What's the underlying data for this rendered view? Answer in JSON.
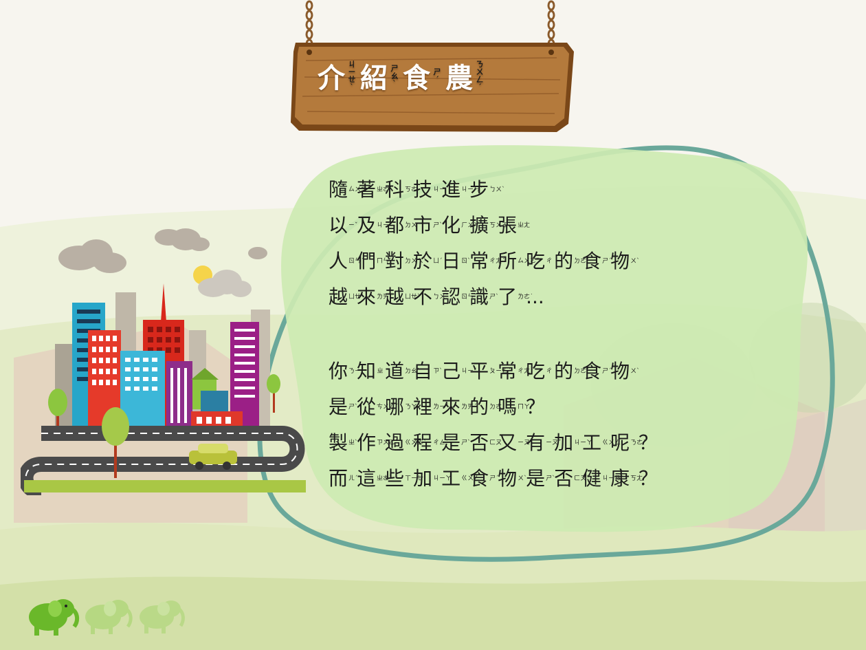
{
  "title": {
    "chars": [
      {
        "c": "介",
        "b": "ㄐㄧㄝˋ"
      },
      {
        "c": "紹",
        "b": "ㄕㄠˋ"
      },
      {
        "c": "食",
        "b": "ㄕˊ"
      },
      {
        "c": "農",
        "b": "ㄋㄨㄥˊ"
      }
    ]
  },
  "lines": [
    [
      {
        "c": "隨",
        "b": "ㄙㄨㄟˊ"
      },
      {
        "c": "著",
        "b": "ㄓㄜ˙"
      },
      {
        "c": "科",
        "b": "ㄎㄜ"
      },
      {
        "c": "技",
        "b": "ㄐㄧˋ"
      },
      {
        "c": "進",
        "b": "ㄐㄧㄣˋ"
      },
      {
        "c": "步",
        "b": "ㄅㄨˋ"
      }
    ],
    [
      {
        "c": "以",
        "b": "ㄧˇ"
      },
      {
        "c": "及",
        "b": "ㄐㄧˊ"
      },
      {
        "c": "都",
        "b": "ㄉㄨ"
      },
      {
        "c": "市",
        "b": "ㄕˋ"
      },
      {
        "c": "化",
        "b": "ㄏㄨㄚˋ"
      },
      {
        "c": "擴",
        "b": "ㄎㄨㄛˋ"
      },
      {
        "c": "張",
        "b": "ㄓㄤ"
      }
    ],
    [
      {
        "c": "人",
        "b": "ㄖㄣˊ"
      },
      {
        "c": "們",
        "b": "ㄇㄣ˙"
      },
      {
        "c": "對",
        "b": "ㄉㄨㄟˋ"
      },
      {
        "c": "於",
        "b": "ㄩˊ"
      },
      {
        "c": "日",
        "b": "ㄖˋ"
      },
      {
        "c": "常",
        "b": "ㄔㄤˊ"
      },
      {
        "c": "所",
        "b": "ㄙㄨㄛˇ"
      },
      {
        "c": "吃",
        "b": "ㄔ"
      },
      {
        "c": "的",
        "b": "ㄉㄜ˙"
      },
      {
        "c": "食",
        "b": "ㄕˊ"
      },
      {
        "c": "物",
        "b": "ㄨˋ"
      }
    ],
    [
      {
        "c": "越",
        "b": "ㄩㄝˋ"
      },
      {
        "c": "來",
        "b": "ㄌㄞˊ"
      },
      {
        "c": "越",
        "b": "ㄩㄝˋ"
      },
      {
        "c": "不",
        "b": "ㄅㄨˋ"
      },
      {
        "c": "認",
        "b": "ㄖㄣˋ"
      },
      {
        "c": "識",
        "b": "ㄕˋ"
      },
      {
        "c": "了",
        "b": "ㄌㄜ˙"
      },
      {
        "c": "...",
        "b": ""
      }
    ],
    [],
    [
      {
        "c": "你",
        "b": "ㄋㄧˇ"
      },
      {
        "c": "知",
        "b": "ㄓ"
      },
      {
        "c": "道",
        "b": "ㄉㄠˋ"
      },
      {
        "c": "自",
        "b": "ㄗˋ"
      },
      {
        "c": "己",
        "b": "ㄐㄧˇ"
      },
      {
        "c": "平",
        "b": "ㄆㄧㄥˊ"
      },
      {
        "c": "常",
        "b": "ㄔㄤˊ"
      },
      {
        "c": "吃",
        "b": "ㄔ"
      },
      {
        "c": "的",
        "b": "ㄉㄜ˙"
      },
      {
        "c": "食",
        "b": "ㄕˊ"
      },
      {
        "c": "物",
        "b": "ㄨˋ"
      }
    ],
    [
      {
        "c": "是",
        "b": "ㄕˋ"
      },
      {
        "c": "從",
        "b": "ㄘㄨㄥˊ"
      },
      {
        "c": "哪",
        "b": "ㄋㄚˇ"
      },
      {
        "c": "裡",
        "b": "ㄌㄧˇ"
      },
      {
        "c": "來",
        "b": "ㄌㄞˊ"
      },
      {
        "c": "的",
        "b": "ㄉㄜ˙"
      },
      {
        "c": "嗎",
        "b": "ㄇㄚ˙"
      },
      {
        "c": "？",
        "b": ""
      }
    ],
    [
      {
        "c": "製",
        "b": "ㄓˋ"
      },
      {
        "c": "作",
        "b": "ㄗㄨㄛˋ"
      },
      {
        "c": "過",
        "b": "ㄍㄨㄛˋ"
      },
      {
        "c": "程",
        "b": "ㄔㄥˊ"
      },
      {
        "c": "是",
        "b": "ㄕˋ"
      },
      {
        "c": "否",
        "b": "ㄈㄡˇ"
      },
      {
        "c": "又",
        "b": "ㄧㄡˋ"
      },
      {
        "c": "有",
        "b": "ㄧㄡˇ"
      },
      {
        "c": "加",
        "b": "ㄐㄧㄚ"
      },
      {
        "c": "工",
        "b": "ㄍㄨㄥ"
      },
      {
        "c": "呢",
        "b": "ㄋㄜ˙"
      },
      {
        "c": "？",
        "b": ""
      }
    ],
    [
      {
        "c": "而",
        "b": "ㄦˊ"
      },
      {
        "c": "這",
        "b": "ㄓㄜˋ"
      },
      {
        "c": "些",
        "b": "ㄒㄧㄝ"
      },
      {
        "c": "加",
        "b": "ㄐㄧㄚ"
      },
      {
        "c": "工",
        "b": "ㄍㄨㄥ"
      },
      {
        "c": "食",
        "b": "ㄕˊ"
      },
      {
        "c": "物",
        "b": "ㄨˋ"
      },
      {
        "c": "是",
        "b": "ㄕˋ"
      },
      {
        "c": "否",
        "b": "ㄈㄡˇ"
      },
      {
        "c": "健",
        "b": "ㄐㄧㄢˋ"
      },
      {
        "c": "康",
        "b": "ㄎㄤ"
      },
      {
        "c": "？",
        "b": ""
      }
    ]
  ],
  "colors": {
    "sky": "#f7f5ef",
    "hill": "#d8e4b0",
    "bubble_fill": "#cdeab2",
    "bubble_outline": "#6aa89a",
    "sign_wood": "#b47a3c",
    "sign_border": "#6b3f17",
    "grass": "#a9c745",
    "road": "#4a4a4a",
    "mascot": "#7cbf2a"
  },
  "icons": [
    "wooden-sign",
    "city-skyline-illustration",
    "elephant-mascot-icon"
  ]
}
